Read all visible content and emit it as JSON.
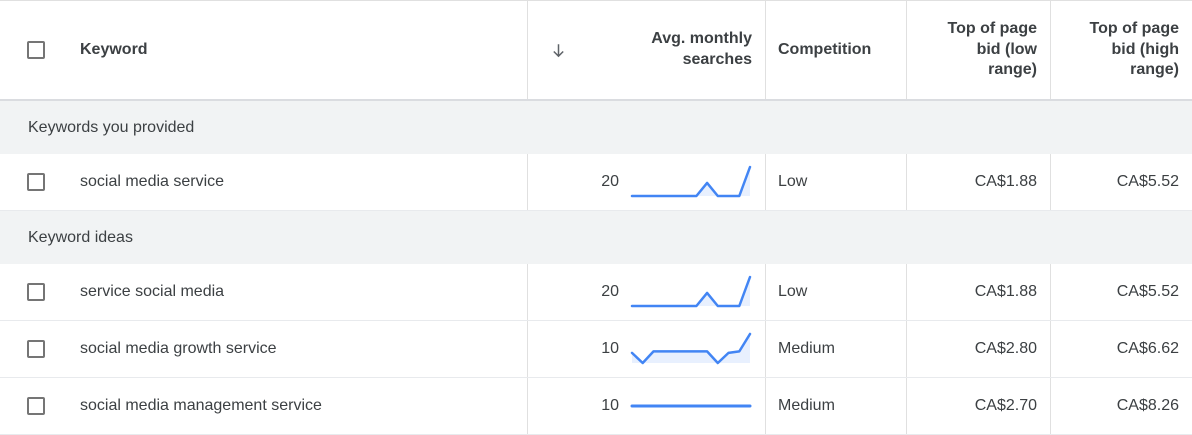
{
  "header": {
    "select_all_checkbox": "unchecked",
    "sort_icon": "arrow-down",
    "columns": {
      "keyword": "Keyword",
      "avg_monthly_searches": "Avg. monthly searches",
      "competition": "Competition",
      "bid_low": "Top of page bid (low range)",
      "bid_high": "Top of page bid (high range)"
    }
  },
  "sections": [
    {
      "label": "Keywords you provided",
      "rows": [
        {
          "checkbox": "unchecked",
          "keyword": "social media service",
          "avg_monthly_searches": "20",
          "trend": [
            0,
            0,
            0,
            0,
            0,
            0,
            0,
            0.45,
            0,
            0,
            0,
            1
          ],
          "competition": "Low",
          "bid_low": "CA$1.88",
          "bid_high": "CA$5.52"
        }
      ]
    },
    {
      "label": "Keyword ideas",
      "rows": [
        {
          "checkbox": "unchecked",
          "keyword": "service social media",
          "avg_monthly_searches": "20",
          "trend": [
            0,
            0,
            0,
            0,
            0,
            0,
            0,
            0.45,
            0,
            0,
            0,
            1
          ],
          "competition": "Low",
          "bid_low": "CA$1.88",
          "bid_high": "CA$5.52"
        },
        {
          "checkbox": "unchecked",
          "keyword": "social media growth service",
          "avg_monthly_searches": "10",
          "trend": [
            0.35,
            0,
            0.4,
            0.4,
            0.4,
            0.4,
            0.4,
            0.4,
            0,
            0.35,
            0.4,
            1
          ],
          "competition": "Medium",
          "bid_low": "CA$2.80",
          "bid_high": "CA$6.62"
        },
        {
          "checkbox": "unchecked",
          "keyword": "social media management service",
          "avg_monthly_searches": "10",
          "trend": [
            0.5,
            0.5,
            0.5,
            0.5,
            0.5,
            0.5,
            0.5,
            0.5,
            0.5,
            0.5,
            0.5,
            0.5
          ],
          "competition": "Medium",
          "bid_low": "CA$2.70",
          "bid_high": "CA$8.26"
        }
      ]
    }
  ],
  "colors": {
    "accent_blue": "#4285f4",
    "spark_fill": "#e8f0fe",
    "section_bg": "#f1f3f4",
    "border": "#e0e0e0",
    "text": "#3c4043"
  }
}
